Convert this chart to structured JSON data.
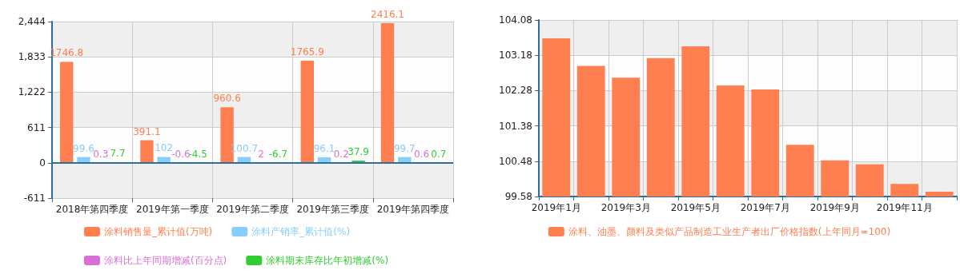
{
  "chart_data": [
    {
      "type": "bar",
      "categories": [
        "2018年第四季度",
        "2019年第一季度",
        "2019年第二季度",
        "2019年第三季度",
        "2019年第四季度"
      ],
      "series": [
        {
          "name": "涂料销售量_累计值(万吨)",
          "color": "#ff7f50",
          "values": [
            1746.8,
            391.1,
            960.6,
            1765.9,
            2416.1
          ]
        },
        {
          "name": "涂料产销率_累计值(%)",
          "color": "#87cefa",
          "values": [
            99.6,
            102,
            100.7,
            96.1,
            99.7
          ]
        },
        {
          "name": "涂料比上年同期增减(百分点)",
          "color": "#da70d6",
          "values": [
            0.3,
            -0.6,
            2,
            0.2,
            0.6
          ]
        },
        {
          "name": "涂料期末库存比年初增减(%)",
          "color": "#32cd32",
          "values": [
            7.7,
            -4.5,
            -6.7,
            37.9,
            0.7
          ]
        }
      ],
      "ylim": [
        -611,
        2444
      ],
      "yticks": [
        {
          "value": -611,
          "label": "-611"
        },
        0,
        {
          "value": 611,
          "label": "611"
        },
        {
          "value": 1222,
          "label": "1,222"
        },
        {
          "value": 1833,
          "label": "1,833"
        },
        {
          "value": 2444,
          "label": "2,444"
        }
      ],
      "grid": true,
      "legend": "bottom",
      "data_labels": true,
      "ref_lines": [
        {
          "axis": "y",
          "value": 0,
          "color": "#2c6f9a"
        }
      ]
    },
    {
      "type": "bar",
      "categories": [
        "2019年1月",
        null,
        "2019年3月",
        null,
        "2019年5月",
        null,
        "2019年7月",
        null,
        "2019年9月",
        null,
        "2019年11月",
        null
      ],
      "series": [
        {
          "name": "涂料、油墨、颜料及类似产品制造工业生产者出厂价格指数(上年同月=100)",
          "color": "#ff7f50",
          "values": [
            103.61,
            102.91,
            102.61,
            103.11,
            103.41,
            102.41,
            102.31,
            100.9,
            100.5,
            100.4,
            99.9,
            99.7
          ]
        }
      ],
      "ylim": [
        99.58,
        104.08
      ],
      "yticks": [
        99.58,
        100.48,
        101.38,
        102.28,
        103.18,
        104.08
      ],
      "grid": true,
      "legend": "bottom"
    }
  ]
}
